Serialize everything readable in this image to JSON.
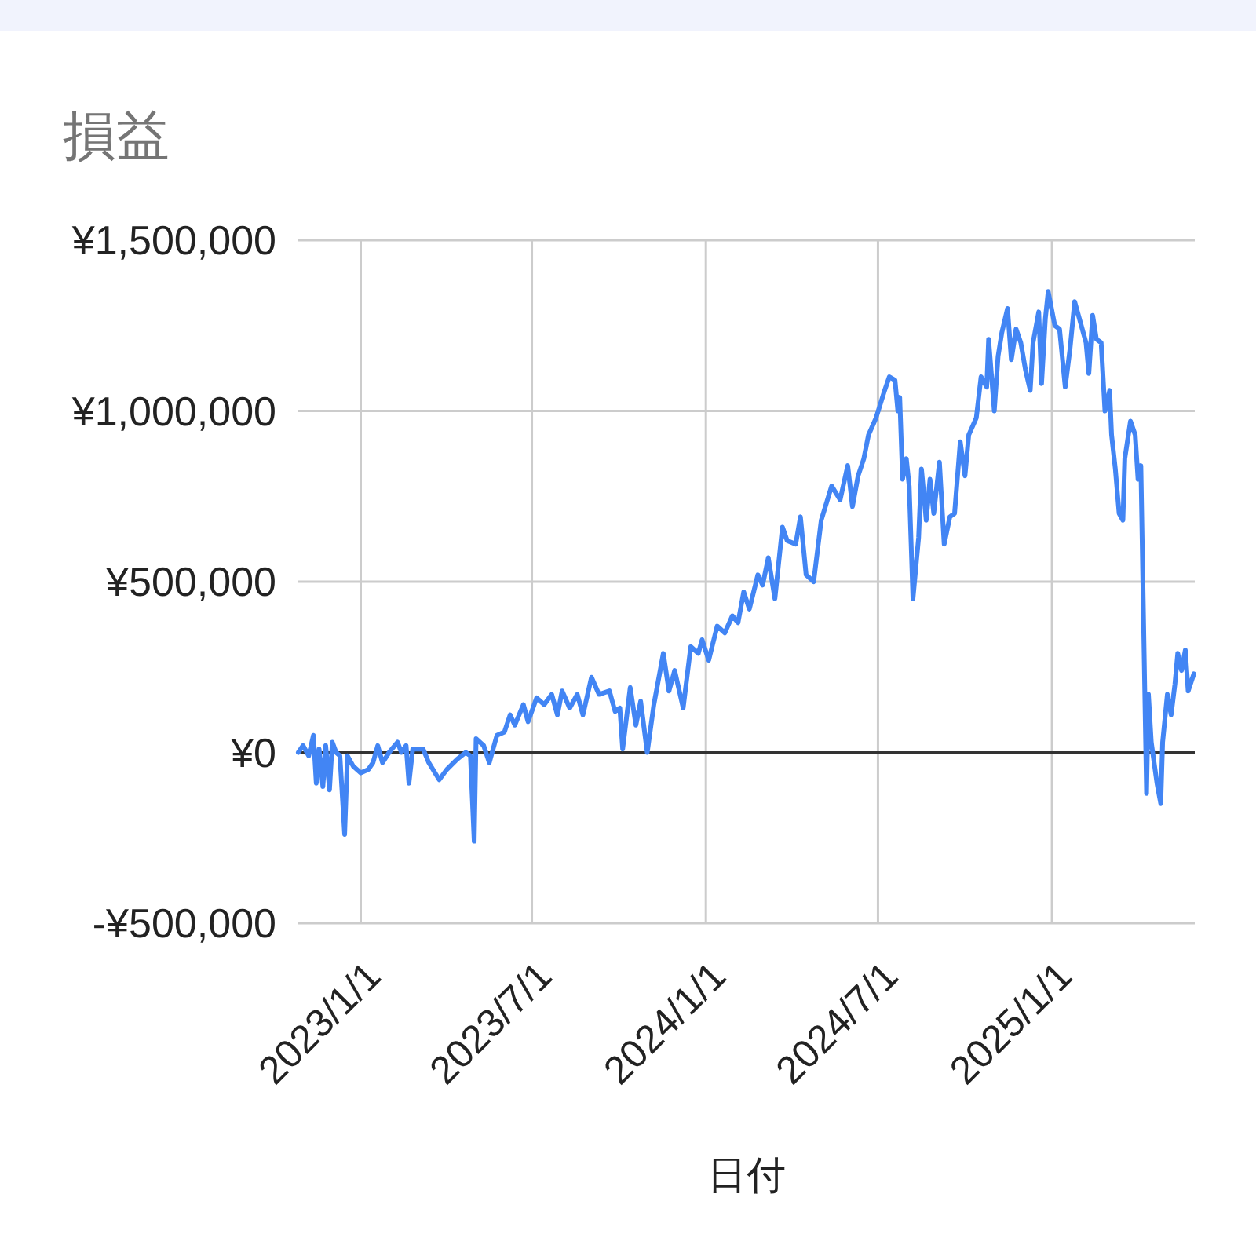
{
  "chart_data": {
    "type": "line",
    "title": "損益",
    "xlabel": "日付",
    "x": [
      "2022-10-27",
      "2022-11-01",
      "2022-11-07",
      "2022-11-12",
      "2022-11-15",
      "2022-11-18",
      "2022-11-22",
      "2022-11-25",
      "2022-11-29",
      "2022-12-02",
      "2022-12-06",
      "2022-12-10",
      "2022-12-15",
      "2022-12-18",
      "2022-12-24",
      "2023-01-01",
      "2023-01-09",
      "2023-01-14",
      "2023-01-19",
      "2023-01-24",
      "2023-01-31",
      "2023-02-09",
      "2023-02-13",
      "2023-02-18",
      "2023-02-21",
      "2023-02-25",
      "2023-03-08",
      "2023-03-14",
      "2023-03-25",
      "2023-04-02",
      "2023-04-13",
      "2023-04-22",
      "2023-04-27",
      "2023-05-01",
      "2023-05-03",
      "2023-05-11",
      "2023-05-17",
      "2023-05-25",
      "2023-06-02",
      "2023-06-08",
      "2023-06-13",
      "2023-06-22",
      "2023-06-27",
      "2023-07-06",
      "2023-07-14",
      "2023-07-22",
      "2023-07-28",
      "2023-08-02",
      "2023-08-10",
      "2023-08-18",
      "2023-08-24",
      "2023-09-02",
      "2023-09-10",
      "2023-09-21",
      "2023-09-27",
      "2023-10-02",
      "2023-10-05",
      "2023-10-13",
      "2023-10-19",
      "2023-10-24",
      "2023-10-31",
      "2023-11-07",
      "2023-11-17",
      "2023-11-23",
      "2023-11-29",
      "2023-12-08",
      "2023-12-16",
      "2023-12-24",
      "2023-12-28",
      "2024-01-04",
      "2024-01-13",
      "2024-01-21",
      "2024-01-29",
      "2024-02-04",
      "2024-02-10",
      "2024-02-16",
      "2024-02-25",
      "2024-03-01",
      "2024-03-07",
      "2024-03-14",
      "2024-03-22",
      "2024-03-27",
      "2024-04-05",
      "2024-04-10",
      "2024-04-16",
      "2024-04-24",
      "2024-05-02",
      "2024-05-13",
      "2024-05-22",
      "2024-05-30",
      "2024-06-04",
      "2024-06-10",
      "2024-06-16",
      "2024-06-21",
      "2024-06-29",
      "2024-07-08",
      "2024-07-13",
      "2024-07-19",
      "2024-07-22",
      "2024-07-24",
      "2024-07-27",
      "2024-07-31",
      "2024-08-03",
      "2024-08-07",
      "2024-08-13",
      "2024-08-16",
      "2024-08-21",
      "2024-08-25",
      "2024-08-29",
      "2024-09-04",
      "2024-09-09",
      "2024-09-15",
      "2024-09-20",
      "2024-09-26",
      "2024-10-01",
      "2024-10-05",
      "2024-10-13",
      "2024-10-18",
      "2024-10-24",
      "2024-10-26",
      "2024-11-01",
      "2024-11-05",
      "2024-11-09",
      "2024-11-15",
      "2024-11-19",
      "2024-11-24",
      "2024-11-29",
      "2024-12-04",
      "2024-12-09",
      "2024-12-12",
      "2024-12-18",
      "2024-12-21",
      "2024-12-25",
      "2024-12-28",
      "2025-01-04",
      "2025-01-09",
      "2025-01-15",
      "2025-01-20",
      "2025-01-25",
      "2025-01-31",
      "2025-02-06",
      "2025-02-09",
      "2025-02-13",
      "2025-02-17",
      "2025-02-22",
      "2025-02-26",
      "2025-03-03",
      "2025-03-05",
      "2025-03-09",
      "2025-03-13",
      "2025-03-17",
      "2025-03-19",
      "2025-03-25",
      "2025-03-30",
      "2025-04-02",
      "2025-04-05",
      "2025-04-11",
      "2025-04-13",
      "2025-04-16",
      "2025-04-22",
      "2025-04-26",
      "2025-04-28",
      "2025-05-03",
      "2025-05-07",
      "2025-05-11",
      "2025-05-14",
      "2025-05-18",
      "2025-05-22",
      "2025-05-25",
      "2025-05-31"
    ],
    "series": [
      {
        "color": "#4285f4",
        "values": [
          0,
          20000,
          -10000,
          50000,
          -90000,
          10000,
          -100000,
          20000,
          -110000,
          30000,
          0,
          -10000,
          -240000,
          -10000,
          -40000,
          -60000,
          -50000,
          -30000,
          20000,
          -30000,
          0,
          30000,
          0,
          20000,
          -90000,
          10000,
          10000,
          -30000,
          -80000,
          -50000,
          -20000,
          0,
          -10000,
          -260000,
          40000,
          20000,
          -30000,
          50000,
          60000,
          110000,
          80000,
          140000,
          90000,
          160000,
          140000,
          170000,
          110000,
          180000,
          130000,
          170000,
          110000,
          220000,
          170000,
          180000,
          120000,
          130000,
          10000,
          190000,
          80000,
          150000,
          0,
          140000,
          290000,
          180000,
          240000,
          130000,
          310000,
          290000,
          330000,
          270000,
          370000,
          350000,
          400000,
          380000,
          470000,
          420000,
          520000,
          490000,
          570000,
          450000,
          660000,
          620000,
          610000,
          690000,
          520000,
          500000,
          680000,
          780000,
          740000,
          840000,
          720000,
          810000,
          860000,
          930000,
          980000,
          1060000,
          1100000,
          1090000,
          1000000,
          1040000,
          800000,
          860000,
          780000,
          450000,
          630000,
          830000,
          680000,
          800000,
          700000,
          850000,
          610000,
          690000,
          700000,
          910000,
          810000,
          930000,
          980000,
          1100000,
          1070000,
          1210000,
          1000000,
          1160000,
          1230000,
          1300000,
          1150000,
          1240000,
          1200000,
          1120000,
          1060000,
          1200000,
          1290000,
          1080000,
          1270000,
          1350000,
          1250000,
          1240000,
          1070000,
          1180000,
          1320000,
          1260000,
          1200000,
          1110000,
          1280000,
          1210000,
          1200000,
          1000000,
          1060000,
          930000,
          830000,
          700000,
          680000,
          860000,
          970000,
          930000,
          800000,
          840000,
          -120000,
          170000,
          30000,
          -90000,
          -150000,
          30000,
          170000,
          110000,
          200000,
          290000,
          240000,
          300000,
          180000,
          230000
        ]
      }
    ],
    "xlim": [
      "2022-10-27",
      "2025-06-01"
    ],
    "xticks": [
      {
        "value": "2023-01-01",
        "label": "2023/1/1"
      },
      {
        "value": "2023-07-01",
        "label": "2023/7/1"
      },
      {
        "value": "2024-01-01",
        "label": "2024/1/1"
      },
      {
        "value": "2024-07-01",
        "label": "2024/7/1"
      },
      {
        "value": "2025-01-01",
        "label": "2025/1/1"
      }
    ],
    "ylim": [
      -500000,
      1500000
    ],
    "yticks": [
      {
        "value": -500000,
        "label": "-¥500,000"
      },
      {
        "value": 0,
        "label": "¥0"
      },
      {
        "value": 500000,
        "label": "¥500,000"
      },
      {
        "value": 1000000,
        "label": "¥1,000,000"
      },
      {
        "value": 1500000,
        "label": "¥1,500,000"
      }
    ],
    "grid": true,
    "ref_lines": [
      {
        "axis": "y",
        "value": 0,
        "color": "#333333"
      }
    ]
  }
}
